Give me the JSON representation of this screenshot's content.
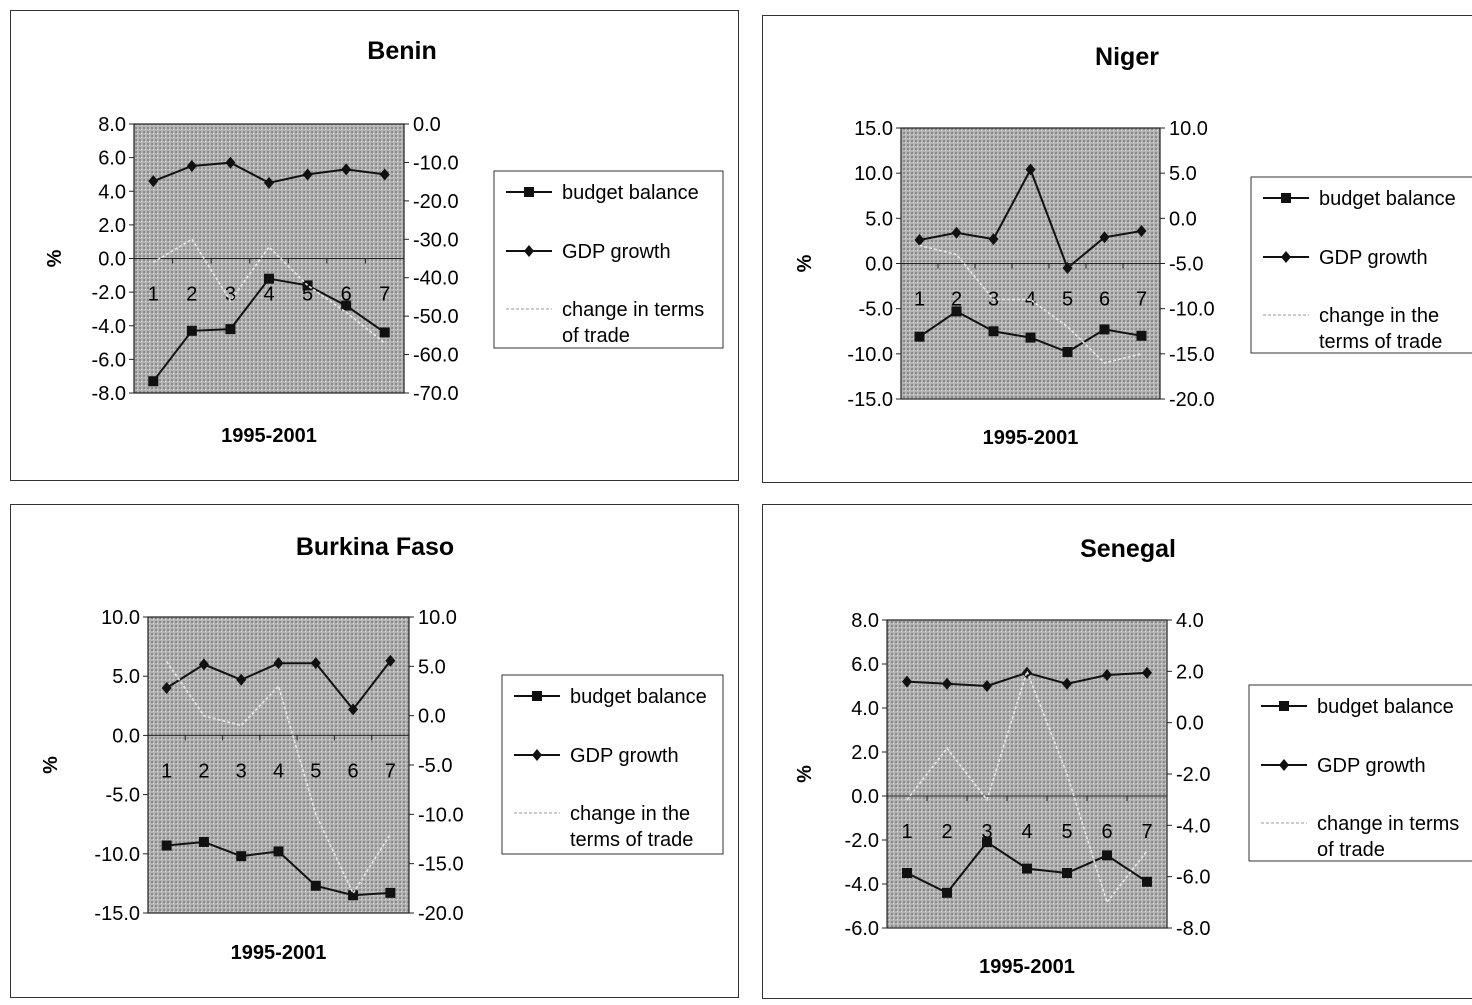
{
  "chart_data": [
    {
      "type": "line",
      "title": "Benin",
      "xlabel": "1995-2001",
      "ylabel": "%",
      "categories": [
        "1",
        "2",
        "3",
        "4",
        "5",
        "6",
        "7"
      ],
      "ylim": [
        -8.0,
        8.0
      ],
      "yticks": [
        "8.0",
        "6.0",
        "4.0",
        "2.0",
        "0.0",
        "-2.0",
        "-4.0",
        "-6.0",
        "-8.0"
      ],
      "y2lim": [
        -70.0,
        0.0
      ],
      "y2ticks": [
        "0.0",
        "-10.0",
        "-20.0",
        "-30.0",
        "-40.0",
        "-50.0",
        "-60.0",
        "-70.0"
      ],
      "series": [
        {
          "name": "budget balance",
          "axis": "left",
          "marker": "square",
          "values": [
            -7.3,
            -4.3,
            -4.2,
            -1.2,
            -1.6,
            -2.8,
            -4.4
          ]
        },
        {
          "name": "GDP growth",
          "axis": "left",
          "marker": "diamond",
          "values": [
            4.6,
            5.5,
            5.7,
            4.5,
            5.0,
            5.3,
            5.0
          ]
        },
        {
          "name": "change in terms of trade",
          "axis": "right",
          "marker": "none",
          "values": [
            -36.0,
            -30.0,
            -46.0,
            -32.0,
            -42.0,
            -49.0,
            -57.0
          ]
        }
      ]
    },
    {
      "type": "line",
      "title": "Niger",
      "xlabel": "1995-2001",
      "ylabel": "%",
      "categories": [
        "1",
        "2",
        "3",
        "4",
        "5",
        "6",
        "7"
      ],
      "ylim": [
        -15.0,
        15.0
      ],
      "yticks": [
        "15.0",
        "10.0",
        "5.0",
        "0.0",
        "-5.0",
        "-10.0",
        "-15.0"
      ],
      "y2lim": [
        -20.0,
        10.0
      ],
      "y2ticks": [
        "10.0",
        "5.0",
        "0.0",
        "-5.0",
        "-10.0",
        "-15.0",
        "-20.0"
      ],
      "series": [
        {
          "name": "budget balance",
          "axis": "left",
          "marker": "square",
          "values": [
            -8.1,
            -5.3,
            -7.5,
            -8.2,
            -9.8,
            -7.3,
            -8.0
          ]
        },
        {
          "name": "GDP growth",
          "axis": "left",
          "marker": "diamond",
          "values": [
            2.6,
            3.4,
            2.7,
            10.4,
            -0.5,
            2.9,
            3.6
          ]
        },
        {
          "name": "change in the terms of trade",
          "axis": "right",
          "marker": "none",
          "values": [
            -3.0,
            -4.0,
            -9.0,
            -9.0,
            -12.0,
            -16.0,
            -15.0
          ]
        }
      ]
    },
    {
      "type": "line",
      "title": "Burkina Faso",
      "xlabel": "1995-2001",
      "ylabel": "%",
      "categories": [
        "1",
        "2",
        "3",
        "4",
        "5",
        "6",
        "7"
      ],
      "ylim": [
        -15.0,
        10.0
      ],
      "yticks": [
        "10.0",
        "5.0",
        "0.0",
        "-5.0",
        "-10.0",
        "-15.0"
      ],
      "y2lim": [
        -20.0,
        10.0
      ],
      "y2ticks": [
        "10.0",
        "5.0",
        "0.0",
        "-5.0",
        "-10.0",
        "-15.0",
        "-20.0"
      ],
      "series": [
        {
          "name": "budget balance",
          "axis": "left",
          "marker": "square",
          "values": [
            -9.3,
            -9.0,
            -10.2,
            -9.8,
            -12.7,
            -13.5,
            -13.3
          ]
        },
        {
          "name": "GDP growth",
          "axis": "left",
          "marker": "diamond",
          "values": [
            4.0,
            6.0,
            4.7,
            6.1,
            6.1,
            2.2,
            6.3
          ]
        },
        {
          "name": "change in the terms of trade",
          "axis": "right",
          "marker": "none",
          "values": [
            5.5,
            0.0,
            -1.0,
            3.0,
            -10.0,
            -18.0,
            -12.0
          ]
        }
      ]
    },
    {
      "type": "line",
      "title": "Senegal",
      "xlabel": "1995-2001",
      "ylabel": "%",
      "categories": [
        "1",
        "2",
        "3",
        "4",
        "5",
        "6",
        "7"
      ],
      "ylim": [
        -6.0,
        8.0
      ],
      "yticks": [
        "8.0",
        "6.0",
        "4.0",
        "2.0",
        "0.0",
        "-2.0",
        "-4.0",
        "-6.0"
      ],
      "y2lim": [
        -8.0,
        4.0
      ],
      "y2ticks": [
        "4.0",
        "2.0",
        "0.0",
        "-2.0",
        "-4.0",
        "-6.0",
        "-8.0"
      ],
      "series": [
        {
          "name": "budget balance",
          "axis": "left",
          "marker": "square",
          "values": [
            -3.5,
            -4.4,
            -2.1,
            -3.3,
            -3.5,
            -2.7,
            -3.9
          ]
        },
        {
          "name": "GDP growth",
          "axis": "left",
          "marker": "diamond",
          "values": [
            5.2,
            5.1,
            5.0,
            5.6,
            5.1,
            5.5,
            5.6
          ]
        },
        {
          "name": "change in terms of trade",
          "axis": "right",
          "marker": "none",
          "values": [
            -3.0,
            -1.0,
            -3.0,
            2.0,
            -2.0,
            -7.0,
            -5.0
          ]
        }
      ]
    }
  ]
}
